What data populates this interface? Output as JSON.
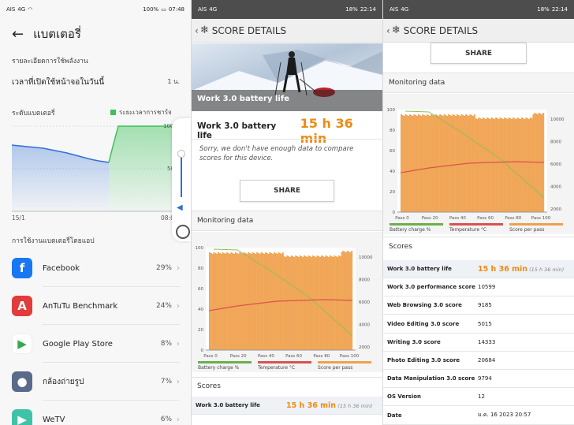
{
  "panel1": {
    "status": {
      "carrier": "AIS",
      "net": "4G",
      "battery": "100%",
      "time": "07:48"
    },
    "title": "แบตเตอรี่",
    "section_detail": "รายละเอียดการใช้พลังงาน",
    "screen_on_label": "เวลาที่เปิดใช้หน้าจอในวันนี้",
    "screen_on_value": "1 น.",
    "battery_level_label": "ระดับแบตเตอรี่",
    "charge_legend": "ระยะเวลาการชาร์จ",
    "y_top": "100",
    "y_mid": "50",
    "x_start": "15/1",
    "x_end": "08:0",
    "apps_section": "การใช้งานแบตเตอรี่โดยแอป",
    "apps": [
      {
        "name": "Facebook",
        "percent": "29%",
        "icon": "facebook-icon",
        "color": "#1877f2",
        "glyph": "f"
      },
      {
        "name": "AnTuTu Benchmark",
        "percent": "24%",
        "icon": "antutu-icon",
        "color": "#e23b3b",
        "glyph": "A"
      },
      {
        "name": "Google Play Store",
        "percent": "8%",
        "icon": "play-store-icon",
        "color": "#ffffff",
        "glyph": "▶"
      },
      {
        "name": "กล้องถ่ายรูป",
        "percent": "7%",
        "icon": "camera-icon",
        "color": "#5a6a8a",
        "glyph": "●"
      },
      {
        "name": "WeTV",
        "percent": "6%",
        "icon": "wetv-icon",
        "color": "#3fc3a8",
        "glyph": "▶"
      }
    ]
  },
  "panel2": {
    "status": {
      "carrier": "AIS",
      "net": "4G",
      "battery": "18%",
      "time": "22:14"
    },
    "header": "SCORE DETAILS",
    "hero_title": "Work 3.0 battery life",
    "life_label": "Work 3.0 battery life",
    "life_value": "15 h 36 min",
    "sorry": "Sorry, we don't have enough data to compare scores for this device.",
    "share": "SHARE",
    "monitoring": "Monitoring data",
    "scores": "Scores",
    "first_row_key": "Work 3.0 battery life",
    "first_row_value": "15 h 36 min",
    "first_row_sub": "(15 h 36 min)"
  },
  "panel3": {
    "status": {
      "carrier": "AIS",
      "net": "4G",
      "battery": "18%",
      "time": "22:14"
    },
    "header": "SCORE DETAILS",
    "share": "SHARE",
    "monitoring": "Monitoring data",
    "scores": "Scores",
    "rows": [
      {
        "key": "Work 3.0 battery life",
        "value": "15 h 36 min",
        "sub": "(15 h 36 min)",
        "highlight": true
      },
      {
        "key": "Work 3.0 performance score",
        "value": "10599"
      },
      {
        "key": "Web Browsing 3.0 score",
        "value": "9185"
      },
      {
        "key": "Video Editing 3.0 score",
        "value": "5015"
      },
      {
        "key": "Writing 3.0 score",
        "value": "14333"
      },
      {
        "key": "Photo Editing 3.0 score",
        "value": "20684"
      },
      {
        "key": "Data Manipulation 3.0 score",
        "value": "9794"
      },
      {
        "key": "OS Version",
        "value": "12"
      },
      {
        "key": "Date",
        "value": "ม.ค. 16 2023 20:57"
      }
    ]
  },
  "monitor_chart": {
    "y_left": [
      "100",
      "80",
      "60",
      "40",
      "20",
      "0"
    ],
    "y_right": [
      "10000",
      "8000",
      "6000",
      "4000",
      "2000"
    ],
    "x_ticks": [
      "Pass 0",
      "Pass 20",
      "Pass 40",
      "Pass 60",
      "Pass 80",
      "Pass 100"
    ],
    "legend": [
      {
        "label": "Battery charge %",
        "color": "#6ab04c"
      },
      {
        "label": "Temperature °C",
        "color": "#d9534f"
      },
      {
        "label": "Score per pass",
        "color": "#f0a04b"
      }
    ],
    "bar_color": "#f0a04b"
  }
}
